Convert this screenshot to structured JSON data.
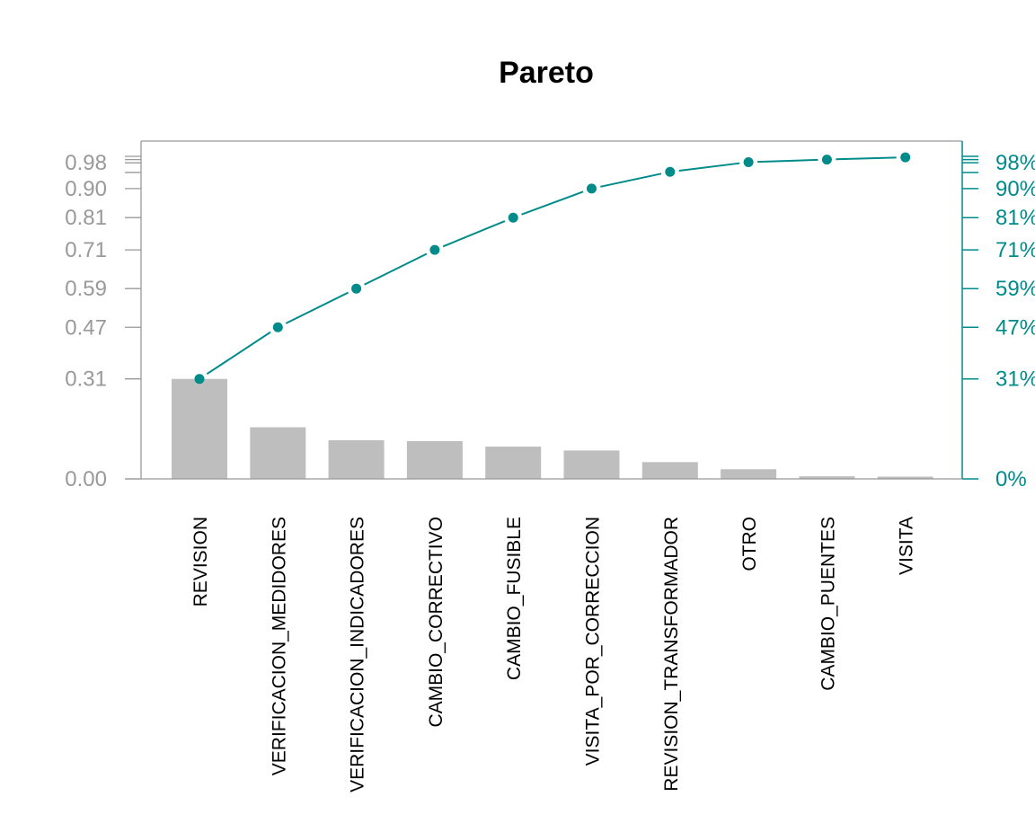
{
  "chart_data": {
    "type": "bar",
    "title": "Pareto",
    "xlabel": "",
    "ylabel": "",
    "categories": [
      "REVISION",
      "VERIFICACION_MEDIDORES",
      "VERIFICACION_INDICADORES",
      "CAMBIO_CORRECTIVO",
      "CAMBIO_FUSIBLE",
      "VISITA_POR_CORRECCION",
      "REVISION_TRANSFORMADOR",
      "OTRO",
      "CAMBIO_PUENTES",
      "VISITA"
    ],
    "series": [
      {
        "values": [
          0.31,
          0.16,
          0.12,
          0.117,
          0.1,
          0.088,
          0.052,
          0.03,
          0.008,
          0.007
        ]
      },
      {
        "values": [
          0.31,
          0.47,
          0.59,
          0.71,
          0.81,
          0.9,
          0.952,
          0.982,
          0.99,
          0.997
        ]
      }
    ],
    "ylim": [
      0,
      1
    ],
    "left_axis_ticks": [
      "0.00",
      "0.31",
      "0.47",
      "0.59",
      "0.71",
      "0.81",
      "0.90",
      "0.98"
    ],
    "left_axis_tick_values": [
      0.0,
      0.31,
      0.47,
      0.59,
      0.71,
      0.81,
      0.9,
      0.98
    ],
    "right_axis_ticks": [
      "0%",
      "31%",
      "47%",
      "59%",
      "71%",
      "81%",
      "90%",
      "98%"
    ],
    "right_axis_tick_values": [
      0.0,
      0.31,
      0.47,
      0.59,
      0.71,
      0.81,
      0.9,
      0.98
    ],
    "extra_tick_values": [
      0.95,
      0.99,
      1.0
    ],
    "grid": false,
    "colors": {
      "bars": "#bebebe",
      "cumulative": "#008b8b",
      "left_axis": "#999999",
      "frame": "#999999",
      "category_labels": "#000000",
      "title": "#000000"
    }
  }
}
